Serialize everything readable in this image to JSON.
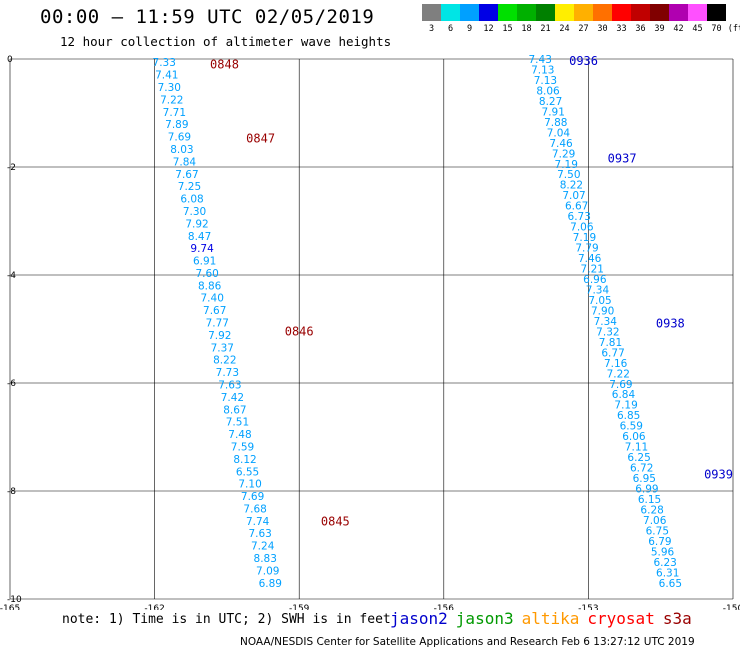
{
  "header": {
    "title": "00:00 — 11:59 UTC 02/05/2019",
    "subtitle": "12 hour collection of altimeter wave heights"
  },
  "legend": {
    "unit": "(ft)",
    "bins": [
      {
        "label": "3",
        "color": "#7f7f7f"
      },
      {
        "label": "6",
        "color": "#00e5e5"
      },
      {
        "label": "9",
        "color": "#00a0ff"
      },
      {
        "label": "12",
        "color": "#0000e5"
      },
      {
        "label": "15",
        "color": "#00e000"
      },
      {
        "label": "18",
        "color": "#00b000"
      },
      {
        "label": "21",
        "color": "#008000"
      },
      {
        "label": "24",
        "color": "#ffee00"
      },
      {
        "label": "27",
        "color": "#ffb000"
      },
      {
        "label": "30",
        "color": "#ff7000"
      },
      {
        "label": "33",
        "color": "#ff0000"
      },
      {
        "label": "36",
        "color": "#c00000"
      },
      {
        "label": "39",
        "color": "#800000"
      },
      {
        "label": "42",
        "color": "#b000b0"
      },
      {
        "label": "45",
        "color": "#ff50ff"
      },
      {
        "label": "70",
        "color": "#000000"
      }
    ]
  },
  "notes": {
    "text": "note:  1) Time is in UTC;  2) SWH is in feet",
    "footer": "NOAA/NESDIS Center for Satellite Applications and Research    Feb  6 13:27:12 UTC 2019"
  },
  "satellites": [
    {
      "name": "jason2",
      "color": "#0000cc"
    },
    {
      "name": "jason3",
      "color": "#009900"
    },
    {
      "name": "altika",
      "color": "#ff9900"
    },
    {
      "name": "cryosat",
      "color": "#ff0000"
    },
    {
      "name": "s3a",
      "color": "#990000"
    }
  ],
  "chart_data": {
    "type": "scatter",
    "xlim": [
      -165,
      -150
    ],
    "ylim": [
      -10,
      0
    ],
    "x_ticks": [
      "-165",
      "-162",
      "-159",
      "-156",
      "-153",
      "-150"
    ],
    "y_ticks": [
      "0",
      "-2",
      "-4",
      "-6",
      "-8",
      "-10"
    ],
    "grid": true,
    "value_color": "#00a0ff",
    "high_value_color": "#0000e5",
    "tracks": [
      {
        "satellite": "s3a",
        "label_color": "#990000",
        "start": [
          -161.8,
          -0.06
        ],
        "end": [
          -159.6,
          -9.7
        ],
        "values": [
          "7.33",
          "7.41",
          "7.30",
          "7.22",
          "7.71",
          "7.89",
          "7.69",
          "8.03",
          "7.84",
          "7.67",
          "7.25",
          "6.08",
          "7.30",
          "7.92",
          "8.47",
          "9.74",
          "6.91",
          "7.60",
          "8.86",
          "7.40",
          "7.67",
          "7.77",
          "7.92",
          "7.37",
          "8.22",
          "7.73",
          "7.63",
          "7.42",
          "8.67",
          "7.51",
          "7.48",
          "7.59",
          "8.12",
          "6.55",
          "7.10",
          "7.69",
          "7.68",
          "7.74",
          "7.63",
          "7.24",
          "8.83",
          "7.09",
          "6.89"
        ],
        "times": [
          {
            "label": "0848",
            "x": -160.85,
            "y": -0.08
          },
          {
            "label": "0847",
            "x": -160.1,
            "y": -1.45
          },
          {
            "label": "0846",
            "x": -159.3,
            "y": -5.03
          },
          {
            "label": "0845",
            "x": -158.55,
            "y": -8.55
          }
        ]
      },
      {
        "satellite": "jason2",
        "label_color": "#0000cc",
        "start": [
          -154.0,
          0.0
        ],
        "end": [
          -151.3,
          -9.7
        ],
        "values": [
          "7.43",
          "7.13",
          "7.13",
          "8.06",
          "8.27",
          "7.91",
          "7.88",
          "7.04",
          "7.46",
          "7.29",
          "7.19",
          "7.50",
          "8.22",
          "7.07",
          "6.67",
          "6.73",
          "7.06",
          "7.19",
          "7.79",
          "7.46",
          "7.21",
          "6.96",
          "7.34",
          "7.05",
          "7.90",
          "7.34",
          "7.32",
          "7.81",
          "6.77",
          "7.16",
          "7.22",
          "7.69",
          "6.84",
          "7.19",
          "6.85",
          "6.59",
          "6.06",
          "7.11",
          "6.25",
          "6.72",
          "6.95",
          "6.99",
          "6.15",
          "6.28",
          "7.06",
          "6.75",
          "6.79",
          "5.96",
          "6.23",
          "6.31",
          "6.65"
        ],
        "times": [
          {
            "label": "0936",
            "x": -153.4,
            "y": -0.02
          },
          {
            "label": "0937",
            "x": -152.6,
            "y": -1.82
          },
          {
            "label": "0938",
            "x": -151.6,
            "y": -4.88
          },
          {
            "label": "0939",
            "x": -150.6,
            "y": -7.68
          }
        ]
      }
    ]
  }
}
